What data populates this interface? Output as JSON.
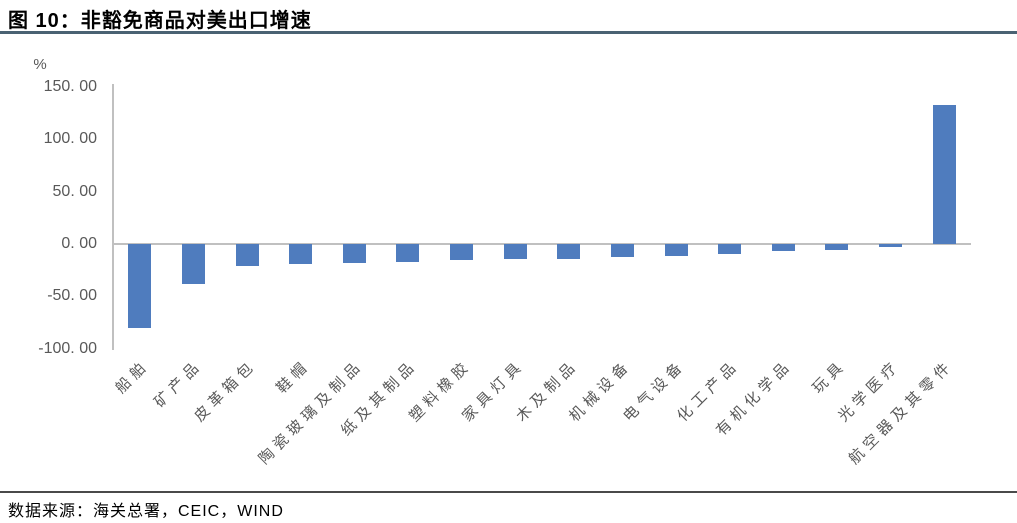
{
  "header": {
    "title": "图 10：非豁免商品对美出口增速"
  },
  "chart_data": {
    "type": "bar",
    "title": "非豁免商品对美出口增速",
    "unit_label": "%",
    "categories": [
      "船舶",
      "矿产品",
      "皮革箱包",
      "鞋帽",
      "陶瓷玻璃及制品",
      "纸及其制品",
      "塑料橡胶",
      "家具灯具",
      "木及制品",
      "机械设备",
      "电气设备",
      "化工产品",
      "有机化学品",
      "玩具",
      "光学医疗",
      "航空器及其零件"
    ],
    "values": [
      -80,
      -38,
      -21,
      -19,
      -18,
      -17,
      -15.5,
      -14.5,
      -14,
      -12,
      -11,
      -10,
      -7,
      -6,
      -2.5,
      133
    ],
    "ylim": [
      -100,
      150
    ],
    "yticks": [
      150,
      100,
      50,
      0,
      -50,
      -100
    ],
    "ytick_labels": [
      "150. 00",
      "100. 00",
      "50. 00",
      "0. 00",
      "-50. 00",
      "-100. 00"
    ],
    "grid": false,
    "legend": false,
    "colors": {
      "bar": "#4f7cbe",
      "axis": "#c0c0c0",
      "tick_text": "#595959",
      "title_rule": "#4a6273",
      "footer_rule": "#4a4a4a"
    }
  },
  "footer": {
    "source": "数据来源：海关总署，CEIC，WIND"
  }
}
